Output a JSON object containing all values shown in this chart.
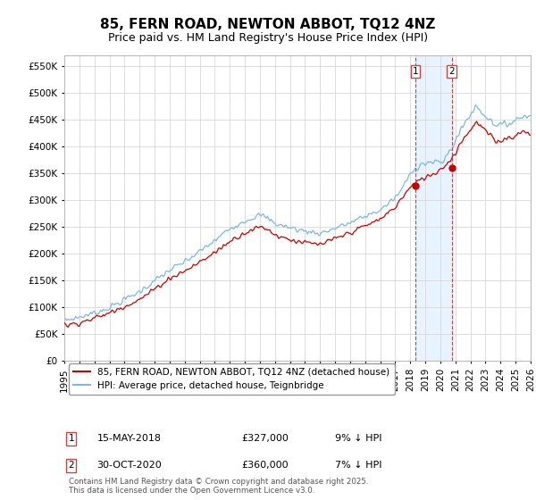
{
  "title": "85, FERN ROAD, NEWTON ABBOT, TQ12 4NZ",
  "subtitle": "Price paid vs. HM Land Registry's House Price Index (HPI)",
  "title_fontsize": 11,
  "subtitle_fontsize": 9,
  "ylabel_ticks": [
    "£0",
    "£50K",
    "£100K",
    "£150K",
    "£200K",
    "£250K",
    "£300K",
    "£350K",
    "£400K",
    "£450K",
    "£500K",
    "£550K"
  ],
  "ytick_values": [
    0,
    50000,
    100000,
    150000,
    200000,
    250000,
    300000,
    350000,
    400000,
    450000,
    500000,
    550000
  ],
  "ylim": [
    0,
    570000
  ],
  "hpi_color": "#7ab8e8",
  "price_color": "#cc0000",
  "vline_color": "#cc4444",
  "shade_color": "#ddeeff",
  "purchase1": {
    "date": "15-MAY-2018",
    "price": 327000,
    "pct": "9%"
  },
  "purchase2": {
    "date": "30-OCT-2020",
    "price": 360000,
    "pct": "7%"
  },
  "legend_house_label": "85, FERN ROAD, NEWTON ABBOT, TQ12 4NZ (detached house)",
  "legend_hpi_label": "HPI: Average price, detached house, Teignbridge",
  "footer": "Contains HM Land Registry data © Crown copyright and database right 2025.\nThis data is licensed under the Open Government Licence v3.0.",
  "background_color": "#ffffff",
  "grid_color": "#d8d8d8",
  "n_months": 373,
  "start_year": 1995,
  "hpi_key_months": [
    0,
    12,
    24,
    36,
    48,
    60,
    72,
    84,
    96,
    108,
    120,
    132,
    144,
    156,
    160,
    168,
    180,
    192,
    204,
    216,
    228,
    240,
    252,
    264,
    270,
    277,
    285,
    295,
    301,
    308,
    318,
    328,
    336,
    344,
    352,
    360,
    365,
    372
  ],
  "hpi_key_vals": [
    76000,
    82000,
    90000,
    100000,
    115000,
    130000,
    150000,
    170000,
    185000,
    205000,
    225000,
    248000,
    262000,
    272000,
    268000,
    256000,
    248000,
    242000,
    238000,
    248000,
    258000,
    270000,
    282000,
    305000,
    325000,
    355000,
    368000,
    370000,
    370000,
    395000,
    440000,
    475000,
    455000,
    440000,
    440000,
    450000,
    455000,
    460000
  ],
  "price_key_months": [
    0,
    12,
    24,
    36,
    48,
    60,
    72,
    84,
    96,
    108,
    120,
    132,
    144,
    156,
    160,
    168,
    180,
    192,
    204,
    216,
    228,
    240,
    252,
    264,
    270,
    277,
    285,
    295,
    301,
    308,
    318,
    328,
    336,
    344,
    352,
    360,
    365,
    372
  ],
  "price_key_vals": [
    66000,
    72000,
    80000,
    90000,
    103000,
    115000,
    135000,
    155000,
    168000,
    185000,
    203000,
    224000,
    240000,
    250000,
    248000,
    235000,
    226000,
    220000,
    217000,
    228000,
    240000,
    252000,
    265000,
    288000,
    308000,
    327000,
    340000,
    350000,
    360000,
    375000,
    415000,
    445000,
    428000,
    408000,
    415000,
    420000,
    428000,
    425000
  ]
}
